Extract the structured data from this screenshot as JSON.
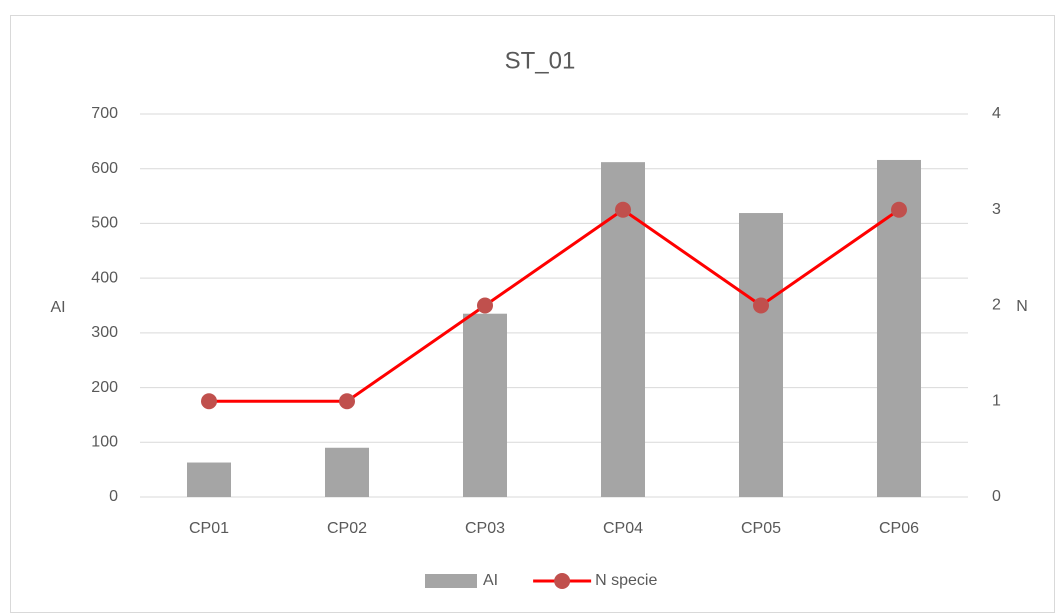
{
  "chart_data": {
    "type": "bar",
    "title": "ST_01",
    "categories": [
      "CP01",
      "CP02",
      "CP03",
      "CP04",
      "CP05",
      "CP06"
    ],
    "series": [
      {
        "name": "AI",
        "type": "bar",
        "color": "#a5a5a5",
        "values": [
          63,
          90,
          335,
          612,
          519,
          616
        ]
      },
      {
        "name": "N specie",
        "type": "line",
        "axis": "y2",
        "color": "#ff0000",
        "marker_color": "#c0504d",
        "values": [
          1,
          1,
          2,
          3,
          2,
          3
        ]
      }
    ],
    "y_label": "AI",
    "y2_label": "N",
    "ylim": [
      0,
      700
    ],
    "yticks": [
      0,
      100,
      200,
      300,
      400,
      500,
      600,
      700
    ],
    "y2lim": [
      0,
      4
    ],
    "y2ticks": [
      0,
      1,
      2,
      3,
      4
    ],
    "grid": true,
    "legend": "bottom"
  }
}
